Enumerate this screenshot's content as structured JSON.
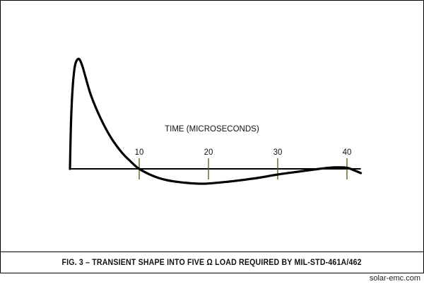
{
  "chart_data": {
    "type": "line",
    "title": "",
    "xlabel": "TIME (MICROSECONDS)",
    "ylabel": "",
    "xlim": [
      0,
      42
    ],
    "ylim": [
      -0.25,
      1.6
    ],
    "x_ticks": [
      10,
      20,
      30,
      40
    ],
    "grid": false,
    "series": [
      {
        "points": [
          [
            0,
            0
          ],
          [
            0.2,
            0.8
          ],
          [
            0.6,
            1.38
          ],
          [
            1.1,
            1.55
          ],
          [
            1.7,
            1.48
          ],
          [
            3,
            1.05
          ],
          [
            4.5,
            0.7
          ],
          [
            6,
            0.43
          ],
          [
            7.5,
            0.23
          ],
          [
            8.7,
            0.11
          ],
          [
            10,
            0.0
          ],
          [
            12,
            -0.1
          ],
          [
            14,
            -0.16
          ],
          [
            17,
            -0.2
          ],
          [
            19.5,
            -0.21
          ],
          [
            23,
            -0.18
          ],
          [
            27,
            -0.13
          ],
          [
            30,
            -0.08
          ],
          [
            33,
            -0.04
          ],
          [
            36,
            0.0
          ],
          [
            38,
            0.02
          ],
          [
            40,
            0.015
          ],
          [
            41,
            -0.02
          ],
          [
            42,
            -0.06
          ]
        ]
      }
    ]
  },
  "caption": "FIG. 3 – TRANSIENT SHAPE INTO FIVE Ω LOAD REQUIRED BY MIL-STD-461A/462",
  "footer": "solar-emc.com"
}
